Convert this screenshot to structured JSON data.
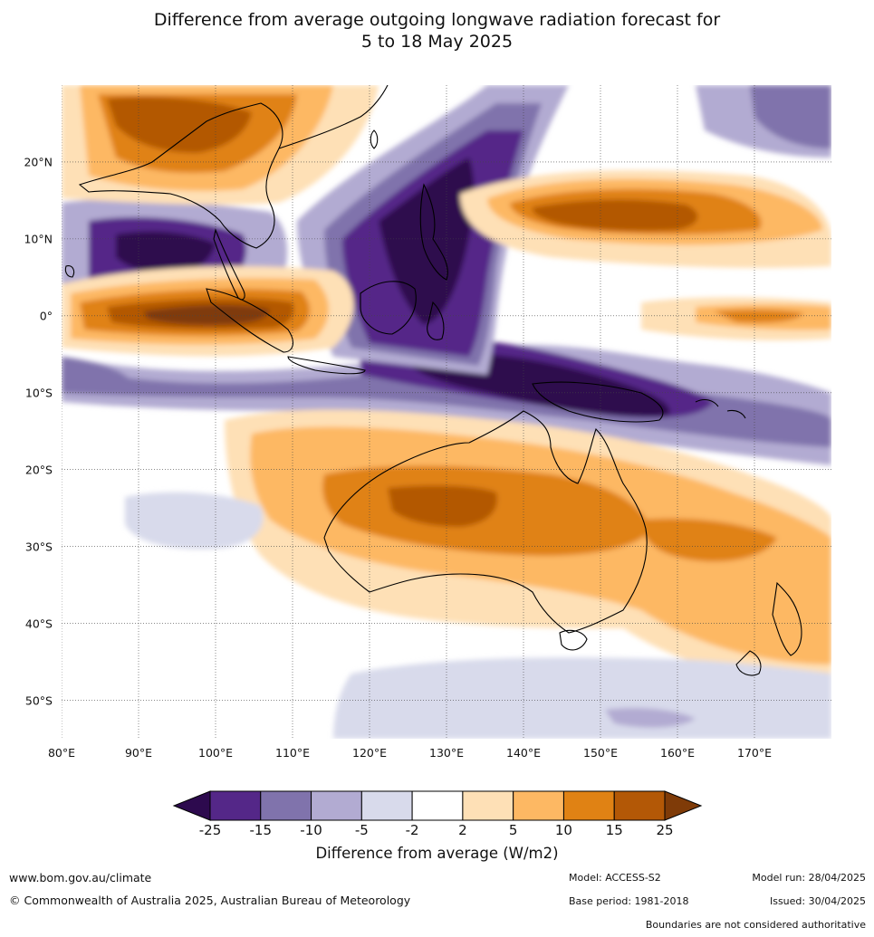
{
  "title": {
    "line1": "Difference from average outgoing longwave radiation forecast for",
    "line2": "5 to 18 May 2025"
  },
  "map": {
    "lat_labels": [
      {
        "lat": 20,
        "text": "20°N"
      },
      {
        "lat": 10,
        "text": "10°N"
      },
      {
        "lat": 0,
        "text": "0°"
      },
      {
        "lat": -10,
        "text": "10°S"
      },
      {
        "lat": -20,
        "text": "20°S"
      },
      {
        "lat": -30,
        "text": "30°S"
      },
      {
        "lat": -40,
        "text": "40°S"
      },
      {
        "lat": -50,
        "text": "50°S"
      }
    ],
    "lon_labels": [
      {
        "lon": 80,
        "text": "80°E"
      },
      {
        "lon": 90,
        "text": "90°E"
      },
      {
        "lon": 100,
        "text": "100°E"
      },
      {
        "lon": 110,
        "text": "110°E"
      },
      {
        "lon": 120,
        "text": "120°E"
      },
      {
        "lon": 130,
        "text": "130°E"
      },
      {
        "lon": 140,
        "text": "140°E"
      },
      {
        "lon": 150,
        "text": "150°E"
      },
      {
        "lon": 160,
        "text": "160°E"
      },
      {
        "lon": 170,
        "text": "170°E"
      }
    ],
    "extent": {
      "lon_min": 80,
      "lon_max": 180,
      "lat_min": -55,
      "lat_max": 30
    },
    "colors": {
      "le_-25": "#2d0a4e",
      "-25_-15": "#542788",
      "-15_-10": "#8073ac",
      "-10_-5": "#b2abd2",
      "-5_-2": "#d8daeb",
      "-2_2": "#ffffff",
      "2_5": "#fee0b6",
      "5_10": "#fdb863",
      "10_15": "#e08214",
      "15_25": "#b35806",
      "ge_25": "#7f3b08"
    }
  },
  "colorbar": {
    "ticks": [
      "-25",
      "-15",
      "-10",
      "-5",
      "-2",
      "2",
      "5",
      "10",
      "15",
      "25"
    ],
    "colors": [
      "#542788",
      "#8073ac",
      "#b2abd2",
      "#d8daeb",
      "#ffffff",
      "#fee0b6",
      "#fdb863",
      "#e08214",
      "#b35806"
    ],
    "low_color": "#2d0a4e",
    "high_color": "#7f3b08",
    "title": "Difference from average (W/m2)"
  },
  "footer": {
    "url": "www.bom.gov.au/climate",
    "copyright": "© Commonwealth of Australia 2025, Australian Bureau of Meteorology",
    "model": "Model: ACCESS-S2",
    "base_period": "Base period: 1981-2018",
    "model_run": "Model run: 28/04/2025",
    "issued": "Issued: 30/04/2025",
    "disclaimer": "Boundaries are not considered authoritative"
  }
}
